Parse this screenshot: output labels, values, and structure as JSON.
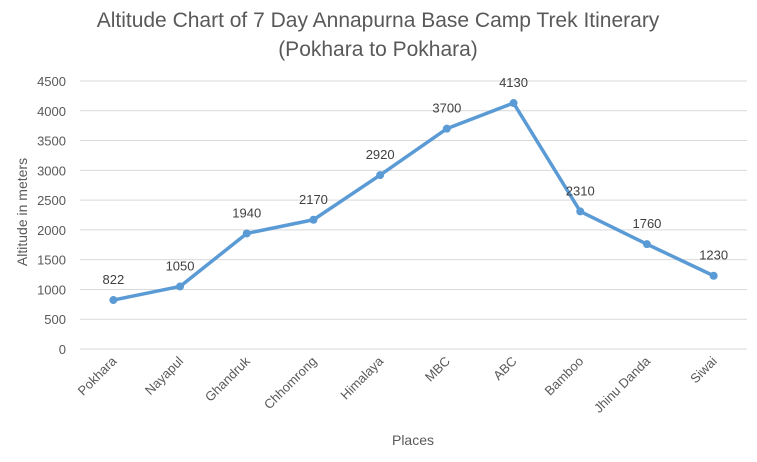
{
  "chart_data": {
    "type": "line",
    "title": "Altitude Chart of 7 Day Annapurna Base Camp Trek Itinerary",
    "subtitle": "(Pokhara to Pokhara)",
    "xlabel": "Places",
    "ylabel": "Altitude in meters",
    "categories": [
      "Pokhara",
      "Nayapul",
      "Ghandruk",
      "Chhomrong",
      "Himalaya",
      "MBC",
      "ABC",
      "Bamboo",
      "Jhinu Danda",
      "Siwai"
    ],
    "series": [
      {
        "values": [
          822,
          1050,
          1940,
          2170,
          2920,
          3700,
          4130,
          2310,
          1760,
          1230
        ]
      }
    ],
    "ylim": [
      0,
      4500
    ],
    "yticks": [
      0,
      500,
      1000,
      1500,
      2000,
      2500,
      3000,
      3500,
      4000,
      4500
    ],
    "grid": true,
    "legend": "none",
    "line_color": "#5b9bd5"
  }
}
